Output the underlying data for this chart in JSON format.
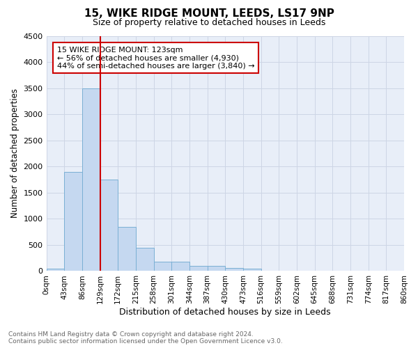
{
  "title": "15, WIKE RIDGE MOUNT, LEEDS, LS17 9NP",
  "subtitle": "Size of property relative to detached houses in Leeds",
  "xlabel": "Distribution of detached houses by size in Leeds",
  "ylabel": "Number of detached properties",
  "footer_line1": "Contains HM Land Registry data © Crown copyright and database right 2024.",
  "footer_line2": "Contains public sector information licensed under the Open Government Licence v3.0.",
  "annotation_line1": "15 WIKE RIDGE MOUNT: 123sqm",
  "annotation_line2": "← 56% of detached houses are smaller (4,930)",
  "annotation_line3": "44% of semi-detached houses are larger (3,840) →",
  "bar_color": "#c5d8f0",
  "bar_edge_color": "#7aafd4",
  "vline_color": "#cc0000",
  "vline_x": 3,
  "ylim": [
    0,
    4500
  ],
  "yticks": [
    0,
    500,
    1000,
    1500,
    2000,
    2500,
    3000,
    3500,
    4000,
    4500
  ],
  "tick_labels": [
    "0sqm",
    "43sqm",
    "86sqm",
    "129sqm",
    "172sqm",
    "215sqm",
    "258sqm",
    "301sqm",
    "344sqm",
    "387sqm",
    "430sqm",
    "473sqm",
    "516sqm",
    "559sqm",
    "602sqm",
    "645sqm",
    "688sqm",
    "731sqm",
    "774sqm",
    "817sqm",
    "860sqm"
  ],
  "bar_heights": [
    50,
    1900,
    3500,
    1750,
    850,
    450,
    175,
    175,
    100,
    100,
    65,
    50,
    0,
    0,
    0,
    0,
    0,
    0,
    0,
    0
  ],
  "grid_color": "#cdd5e5",
  "background_color": "#e8eef8"
}
